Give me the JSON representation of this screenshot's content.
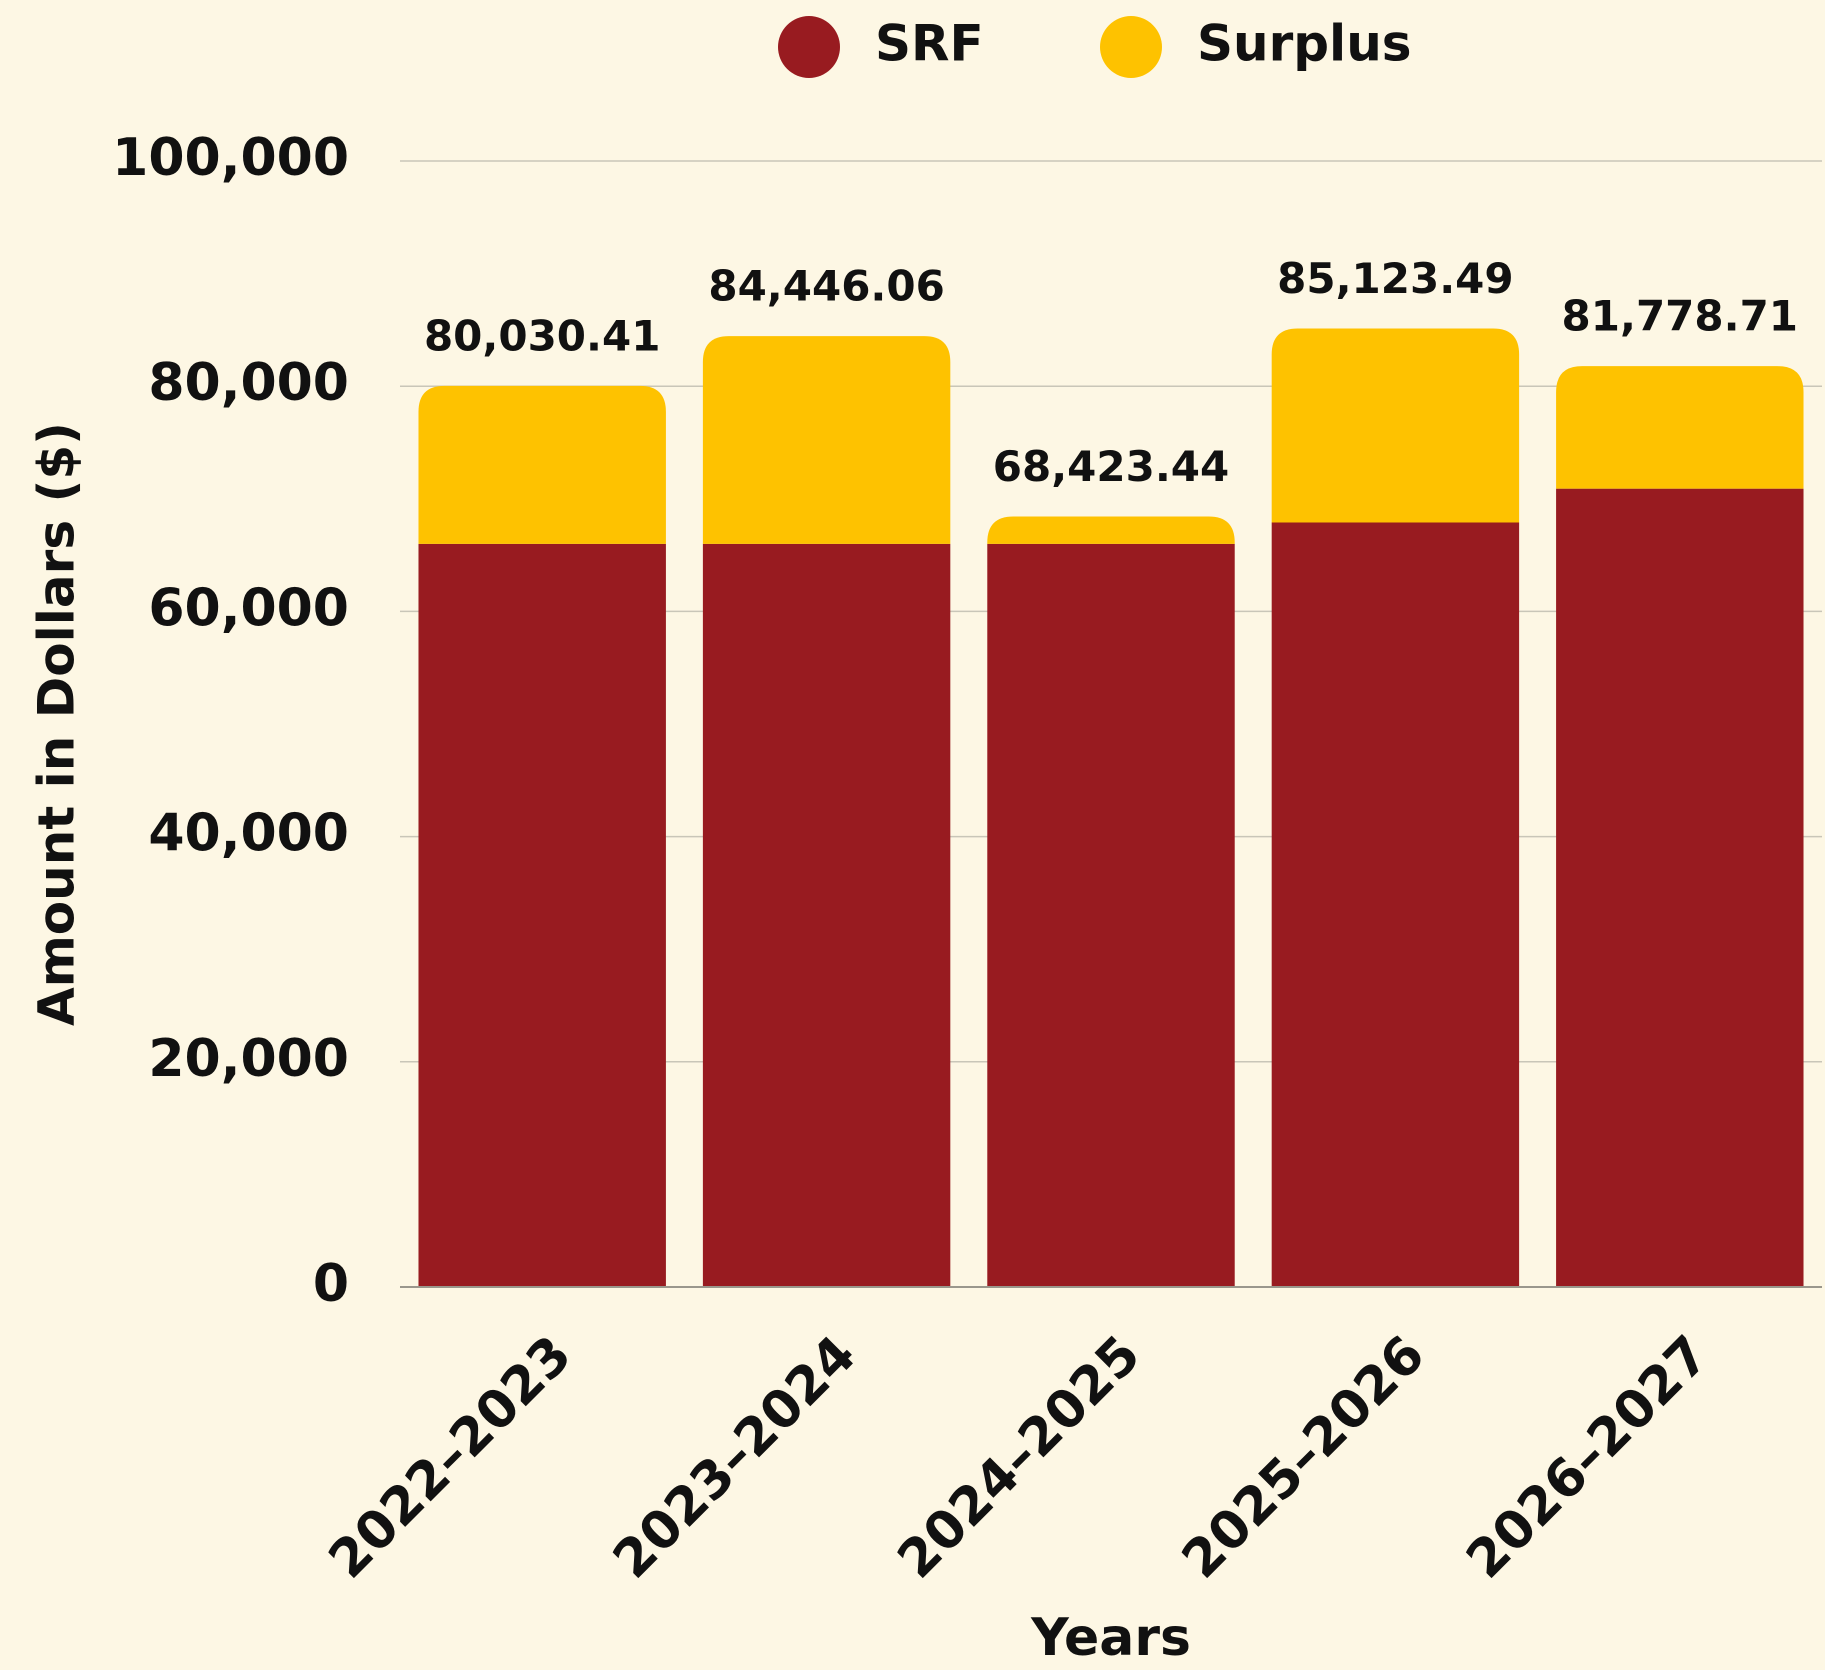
{
  "chart_data": {
    "type": "stacked_bar",
    "categories": [
      "2022–2023",
      "2023–2024",
      "2024–2025",
      "2025–2026",
      "2026–2027"
    ],
    "series": [
      {
        "name": "SRF",
        "color": "#981b20",
        "values": [
          66000,
          66000,
          66000,
          67900,
          70900
        ]
      },
      {
        "name": "Surplus",
        "color": "#fec200",
        "values": [
          14030.41,
          18446.06,
          2423.44,
          17223.49,
          10878.71
        ]
      }
    ],
    "totals": [
      80030.41,
      84446.06,
      68423.44,
      85123.49,
      81778.71
    ],
    "total_labels": [
      "80,030.41",
      "84,446.06",
      "68,423.44",
      "85,123.49",
      "81,778.71"
    ],
    "xlabel": "Years",
    "ylabel": "Amount in Dollars ($)",
    "ylim": [
      0,
      100000
    ],
    "yticks": [
      0,
      {
        "value": 20000,
        "label": "20,000"
      },
      {
        "value": 40000,
        "label": "40,000"
      },
      {
        "value": 60000,
        "label": "60,000"
      },
      {
        "value": 80000,
        "label": "80,000"
      },
      {
        "value": 100000,
        "label": "100,000"
      }
    ],
    "grid": true,
    "legend": "top"
  }
}
